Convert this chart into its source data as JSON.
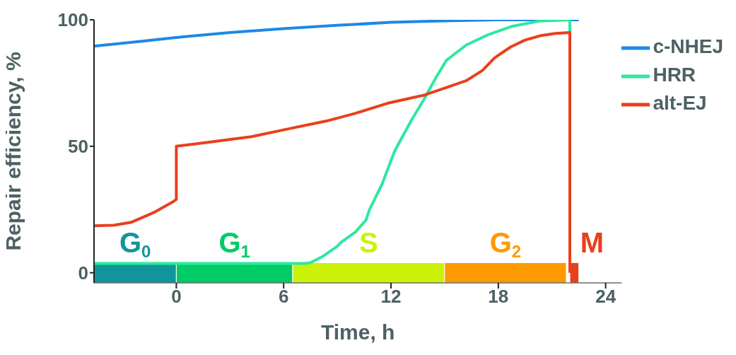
{
  "chart_data": {
    "type": "line",
    "xlabel": "Time, h",
    "ylabel": "Repair efficiency, %",
    "xlim": [
      -4.6,
      24.9
    ],
    "xticks": [
      0,
      6,
      12,
      18,
      24
    ],
    "ylim": [
      -4,
      100
    ],
    "yticks": [
      0,
      50,
      100
    ],
    "legend": "top right",
    "marker": "none",
    "line_style": "solid",
    "series": [
      {
        "name": "c-NHEJ",
        "color": "#1e88e5",
        "x": [
          -4.6,
          -2,
          0,
          3,
          6,
          9,
          12,
          15,
          18,
          20,
          22.5
        ],
        "values": [
          89.6,
          91.5,
          93,
          95,
          96.5,
          97.8,
          99,
          99.6,
          100,
          100,
          100
        ]
      },
      {
        "name": "HRR",
        "color": "#2ee8a0",
        "x": [
          -4.6,
          7.2,
          7.5,
          8.2,
          9.0,
          9.2,
          10.0,
          10.6,
          10.8,
          11.5,
          12.2,
          12.5,
          13.2,
          13.8,
          14.5,
          15.1,
          16.2,
          17.4,
          18.8,
          20.3,
          22.0,
          22.0
        ],
        "values": [
          3.7,
          3.7,
          4,
          6.5,
          10.5,
          12,
          16,
          20.8,
          25,
          35,
          48,
          52,
          61,
          68,
          77,
          84,
          90,
          94,
          97.5,
          99.5,
          100,
          95
        ]
      },
      {
        "name": "alt-EJ",
        "color": "#e8401c",
        "x": [
          -4.6,
          -3.5,
          -2.5,
          -1.2,
          -0.2,
          0,
          0,
          2,
          4.2,
          6,
          8.4,
          10,
          11.8,
          13.9,
          15,
          16.2,
          17.1,
          17.8,
          18.7,
          19.5,
          20.4,
          21.2,
          22.0,
          22.0
        ],
        "values": [
          18.6,
          18.8,
          20,
          24,
          28,
          29,
          50,
          51.8,
          53.8,
          56.5,
          60,
          63,
          67,
          70.3,
          73,
          75.9,
          79.9,
          85,
          89.3,
          92,
          93.8,
          94.6,
          95,
          0
        ]
      }
    ],
    "bands": [
      {
        "axis": "x",
        "from": -4.6,
        "to": 0,
        "label": "G$_{0}$",
        "color": "#11959a"
      },
      {
        "axis": "x",
        "from": 0,
        "to": 6.5,
        "label": "G$_{1}$",
        "color": "#00cc66"
      },
      {
        "axis": "x",
        "from": 6.5,
        "to": 15.0,
        "label": "S",
        "color": "#ccf20a"
      },
      {
        "axis": "x",
        "from": 15.0,
        "to": 21.8,
        "label": "G$_{2}$",
        "color": "#ff9900"
      },
      {
        "axis": "x",
        "from": 22.0,
        "to": 22.5,
        "label": "M",
        "color": "#e8401c"
      }
    ]
  }
}
